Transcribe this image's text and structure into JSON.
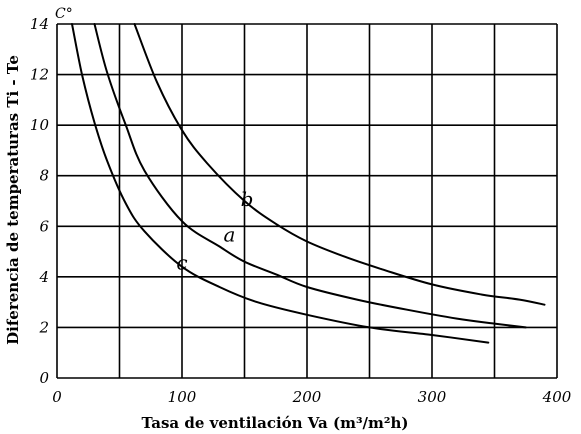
{
  "chart_data": {
    "type": "line",
    "title": "",
    "xlabel": "Tasa de ventilación   Va (m³/m²h)",
    "ylabel": "Diferencia de temperaturas   Ti - Te",
    "y_unit": "C°",
    "xlim": [
      0,
      400
    ],
    "ylim": [
      0,
      14
    ],
    "x_ticks": [
      "0",
      "100",
      "200",
      "300",
      "400"
    ],
    "y_ticks": [
      "0",
      "2",
      "4",
      "6",
      "8",
      "10",
      "12",
      "14"
    ],
    "grid": true,
    "series": [
      {
        "name": "b",
        "x": [
          62,
          80,
          100,
          120,
          150,
          175,
          200,
          230,
          260,
          300,
          340,
          370,
          390
        ],
        "y": [
          14,
          11.7,
          9.8,
          8.5,
          7.0,
          6.1,
          5.4,
          4.8,
          4.3,
          3.7,
          3.3,
          3.1,
          2.9
        ]
      },
      {
        "name": "a",
        "x": [
          30,
          40,
          55,
          70,
          100,
          130,
          150,
          175,
          200,
          240,
          280,
          320,
          350,
          375
        ],
        "y": [
          14,
          12.1,
          10.0,
          8.2,
          6.2,
          5.2,
          4.6,
          4.1,
          3.6,
          3.1,
          2.7,
          2.35,
          2.15,
          2.0
        ]
      },
      {
        "name": "c",
        "x": [
          12,
          20,
          30,
          40,
          55,
          70,
          100,
          130,
          160,
          200,
          250,
          300,
          345
        ],
        "y": [
          14,
          12.0,
          10.1,
          8.6,
          6.9,
          5.8,
          4.4,
          3.6,
          3.0,
          2.5,
          2.0,
          1.7,
          1.4
        ]
      }
    ],
    "curve_labels": [
      {
        "text": "b",
        "x": 152,
        "y": 6.8
      },
      {
        "text": "a",
        "x": 138,
        "y": 5.4
      },
      {
        "text": "c",
        "x": 100,
        "y": 4.3
      }
    ]
  }
}
